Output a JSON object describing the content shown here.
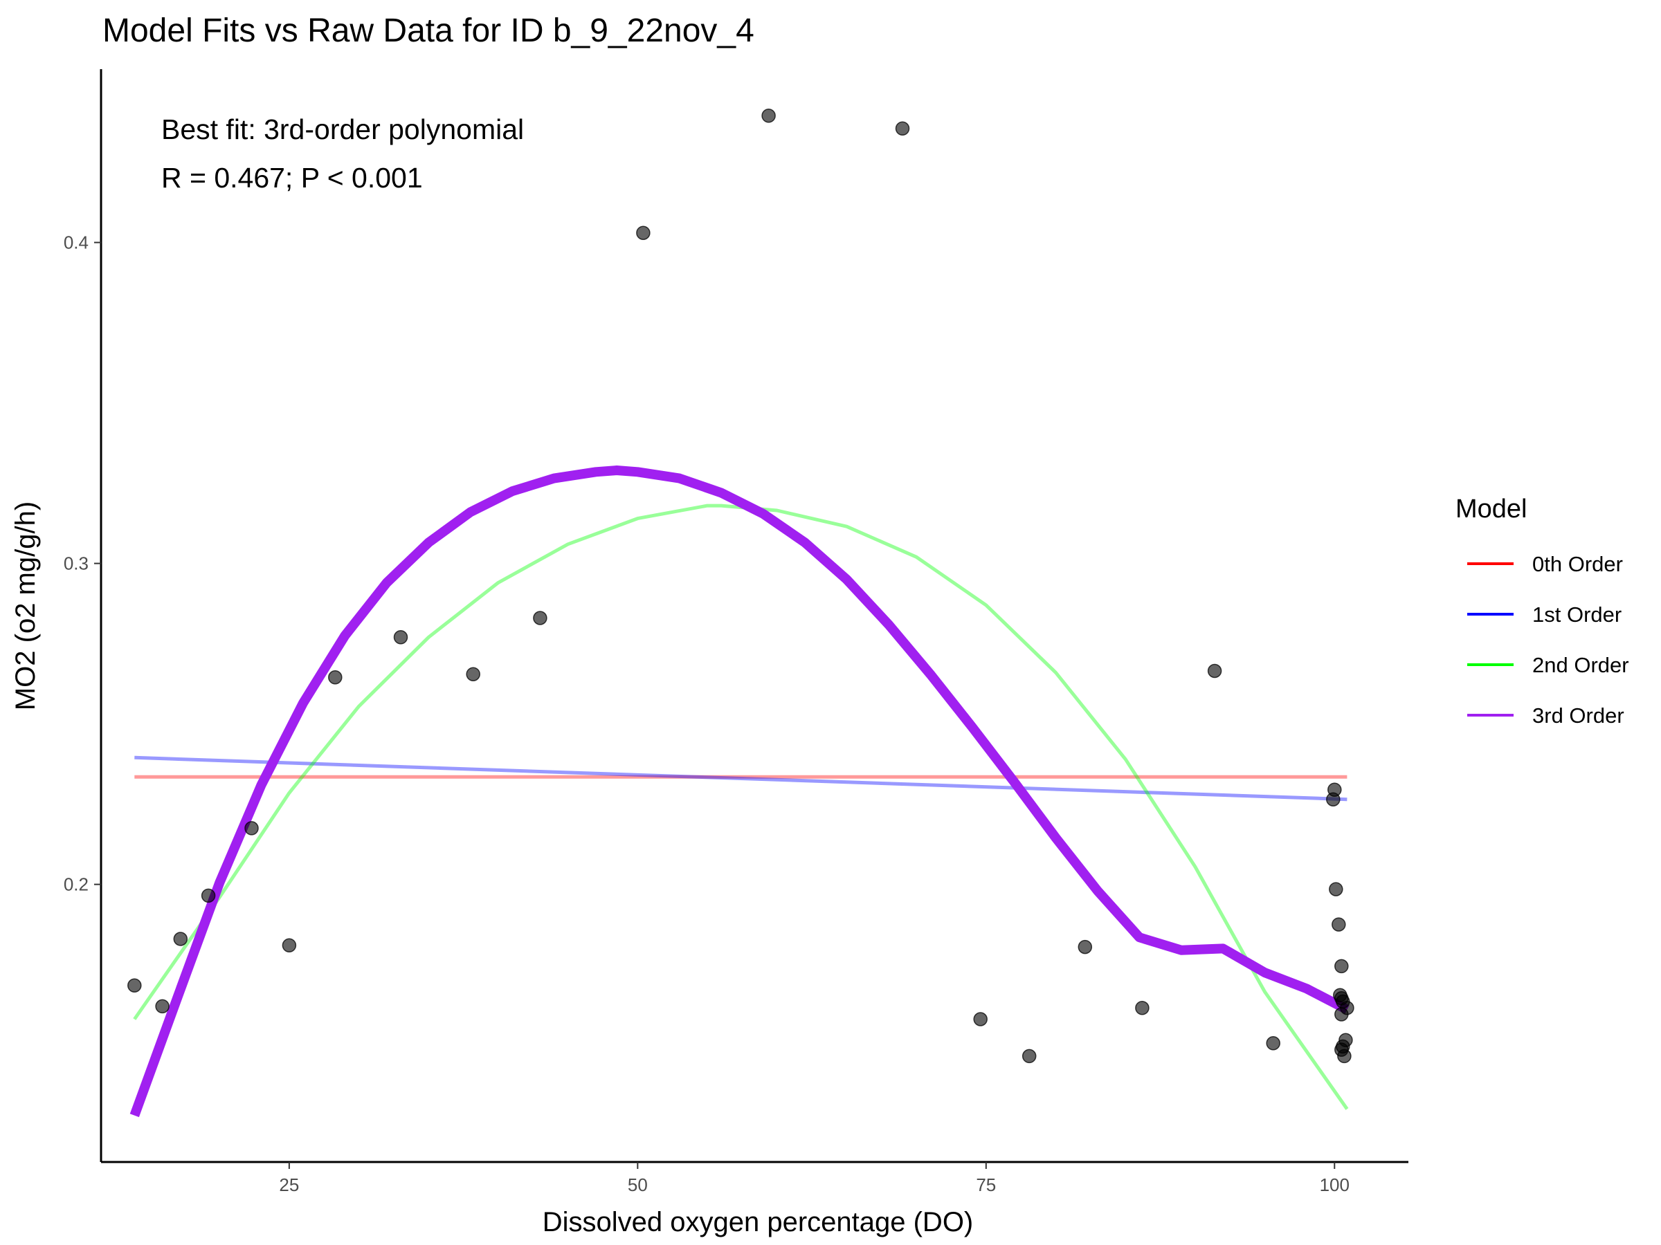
{
  "chart_data": {
    "type": "scatter",
    "title": "Model Fits vs Raw Data for ID b_9_22nov_4",
    "xlabel": "Dissolved oxygen percentage (DO)",
    "ylabel": "MO2 (o2 mg/g/h)",
    "xlim": [
      11.5,
      105.3
    ],
    "ylim": [
      0.1135,
      0.454
    ],
    "xticks": [
      25,
      50,
      75,
      100
    ],
    "xtick_labels": [
      "25",
      "50",
      "75",
      "100"
    ],
    "yticks": [
      0.2,
      0.3,
      0.4
    ],
    "ytick_labels": [
      "0.2",
      "0.3",
      "0.4"
    ],
    "grid": false,
    "legend_placement": "right",
    "annotations": [
      "Best fit: 3rd-order polynomial",
      "R = 0.467; P < 0.001"
    ],
    "points": [
      {
        "x": 13.9,
        "y": 0.1685
      },
      {
        "x": 15.9,
        "y": 0.162
      },
      {
        "x": 17.2,
        "y": 0.183
      },
      {
        "x": 19.2,
        "y": 0.1965
      },
      {
        "x": 22.3,
        "y": 0.2175
      },
      {
        "x": 25.0,
        "y": 0.181
      },
      {
        "x": 28.3,
        "y": 0.2645
      },
      {
        "x": 33.0,
        "y": 0.277
      },
      {
        "x": 38.2,
        "y": 0.2655
      },
      {
        "x": 43.0,
        "y": 0.283
      },
      {
        "x": 50.4,
        "y": 0.403
      },
      {
        "x": 59.4,
        "y": 0.4395
      },
      {
        "x": 69.0,
        "y": 0.4355
      },
      {
        "x": 74.6,
        "y": 0.158
      },
      {
        "x": 78.1,
        "y": 0.1465
      },
      {
        "x": 82.1,
        "y": 0.1805
      },
      {
        "x": 86.2,
        "y": 0.1615
      },
      {
        "x": 91.4,
        "y": 0.2665
      },
      {
        "x": 95.6,
        "y": 0.1505
      },
      {
        "x": 100.0,
        "y": 0.2295
      },
      {
        "x": 99.9,
        "y": 0.2265
      },
      {
        "x": 100.1,
        "y": 0.1985
      },
      {
        "x": 100.3,
        "y": 0.1875
      },
      {
        "x": 100.5,
        "y": 0.1745
      },
      {
        "x": 100.4,
        "y": 0.1655
      },
      {
        "x": 100.5,
        "y": 0.1645
      },
      {
        "x": 100.6,
        "y": 0.1635
      },
      {
        "x": 100.9,
        "y": 0.1615
      },
      {
        "x": 100.5,
        "y": 0.1595
      },
      {
        "x": 100.8,
        "y": 0.1515
      },
      {
        "x": 100.6,
        "y": 0.1495
      },
      {
        "x": 100.5,
        "y": 0.1485
      },
      {
        "x": 100.7,
        "y": 0.1465
      }
    ],
    "series": [
      {
        "name": "0th Order",
        "color": "#FF0000",
        "opacity": 0.4,
        "line_width": 5,
        "x": [
          13.9,
          100.9
        ],
        "y": [
          0.2335,
          0.2335
        ]
      },
      {
        "name": "1st Order",
        "color": "#0000FF",
        "opacity": 0.4,
        "line_width": 5,
        "x": [
          13.9,
          100.9
        ],
        "y": [
          0.2395,
          0.2265
        ]
      },
      {
        "name": "2nd Order",
        "color": "#00FF00",
        "opacity": 0.4,
        "line_width": 5,
        "x": [
          13.9,
          20,
          25,
          30,
          35,
          40,
          45,
          50,
          55,
          56.0,
          60,
          65,
          70,
          75,
          80,
          85,
          90,
          95,
          100.9
        ],
        "y": [
          0.158,
          0.196,
          0.2285,
          0.2555,
          0.277,
          0.294,
          0.306,
          0.314,
          0.318,
          0.318,
          0.3165,
          0.3115,
          0.302,
          0.287,
          0.266,
          0.239,
          0.2055,
          0.1665,
          0.13
        ]
      },
      {
        "name": "3rd Order",
        "color": "#A020F0",
        "opacity": 1,
        "line_width": 14,
        "x": [
          13.9,
          17,
          20,
          23,
          26,
          29,
          32,
          35,
          38,
          41,
          44,
          47,
          48.5,
          50,
          53,
          56,
          59,
          62,
          65,
          68,
          71,
          74,
          77,
          80,
          83,
          86,
          89,
          92,
          95,
          98,
          100.9
        ],
        "y": [
          0.128,
          0.165,
          0.2005,
          0.231,
          0.2565,
          0.2775,
          0.294,
          0.3065,
          0.316,
          0.3225,
          0.3265,
          0.3285,
          0.329,
          0.3285,
          0.3265,
          0.322,
          0.3155,
          0.3065,
          0.295,
          0.281,
          0.2655,
          0.249,
          0.232,
          0.2145,
          0.198,
          0.1835,
          0.1795,
          0.18,
          0.1725,
          0.1675,
          0.161
        ]
      }
    ],
    "legend": {
      "title": "Model",
      "entries": [
        {
          "label": "0th Order",
          "color": "#FF0000"
        },
        {
          "label": "1st Order",
          "color": "#0000FF"
        },
        {
          "label": "2nd Order",
          "color": "#00FF00"
        },
        {
          "label": "3rd Order",
          "color": "#A020F0"
        }
      ]
    }
  }
}
